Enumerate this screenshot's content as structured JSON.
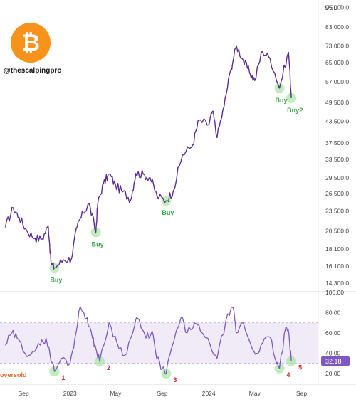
{
  "brand": {
    "logo_glyph": "₿",
    "handle": "@thescalpingpro",
    "logo_color": "#F7931A"
  },
  "chart_data": [
    {
      "type": "line",
      "currency": "USDT",
      "scale": "log",
      "ylim": [
        13500,
        100000
      ],
      "y_ticks": [
        95000,
        83000,
        73000,
        65000,
        57000,
        49500,
        43500,
        37500,
        33500,
        29500,
        26500,
        23500,
        20500,
        18100,
        16100,
        14300
      ],
      "x_ticks": [
        "Sep",
        "2023",
        "May",
        "Sep",
        "2024",
        "May",
        "Sep"
      ],
      "series": [
        {
          "color": "#5B2C91",
          "x": [
            "2022-07-15",
            "2022-08-05",
            "2022-08-20",
            "2022-09-10",
            "2022-10-01",
            "2022-10-20",
            "2022-11-05",
            "2022-11-12",
            "2022-11-21",
            "2022-12-15",
            "2023-01-05",
            "2023-01-20",
            "2023-02-05",
            "2023-02-20",
            "2023-03-10",
            "2023-03-15",
            "2023-03-30",
            "2023-04-14",
            "2023-05-01",
            "2023-05-20",
            "2023-06-10",
            "2023-06-23",
            "2023-07-13",
            "2023-07-31",
            "2023-08-18",
            "2023-09-11",
            "2023-09-30",
            "2023-10-24",
            "2023-11-20",
            "2023-12-06",
            "2024-01-01",
            "2024-01-11",
            "2024-01-23",
            "2024-02-10",
            "2024-02-28",
            "2024-03-14",
            "2024-04-01",
            "2024-04-17",
            "2024-05-01",
            "2024-05-21",
            "2024-06-10",
            "2024-07-05",
            "2024-07-29",
            "2024-08-05"
          ],
          "values": [
            21000,
            24000,
            22500,
            20500,
            19500,
            19400,
            21200,
            16500,
            15900,
            16800,
            16950,
            21100,
            23200,
            24700,
            20300,
            24700,
            28300,
            30300,
            28000,
            26800,
            25400,
            30400,
            30200,
            29500,
            26000,
            25200,
            27000,
            34500,
            37000,
            43800,
            42500,
            46600,
            38900,
            48000,
            62000,
            73000,
            66000,
            61000,
            57500,
            70500,
            67000,
            54600,
            69800,
            51000
          ]
        }
      ],
      "annotations": [
        {
          "text": "Buy",
          "x": "2022-11-21",
          "y": 15900
        },
        {
          "text": "Buy",
          "x": "2023-03-10",
          "y": 20300
        },
        {
          "text": "Buy",
          "x": "2023-09-11",
          "y": 25200
        },
        {
          "text": "Buy",
          "x": "2024-07-05",
          "y": 54600
        },
        {
          "text": "Buy?",
          "x": "2024-08-05",
          "y": 51000
        }
      ]
    },
    {
      "type": "line",
      "series": [
        {
          "color": "#7E57C2",
          "x": [
            "2022-07-15",
            "2022-08-01",
            "2022-08-15",
            "2022-09-05",
            "2022-09-25",
            "2022-10-15",
            "2022-10-30",
            "2022-11-09",
            "2022-11-21",
            "2022-12-10",
            "2023-01-01",
            "2023-01-14",
            "2023-01-28",
            "2023-02-15",
            "2023-03-01",
            "2023-03-10",
            "2023-03-20",
            "2023-04-14",
            "2023-05-05",
            "2023-05-25",
            "2023-06-15",
            "2023-06-25",
            "2023-07-20",
            "2023-08-05",
            "2023-08-17",
            "2023-09-01",
            "2023-09-11",
            "2023-09-25",
            "2023-10-20",
            "2023-11-05",
            "2023-11-25",
            "2023-12-10",
            "2024-01-05",
            "2024-01-23",
            "2024-02-15",
            "2024-03-05",
            "2024-03-13",
            "2024-04-01",
            "2024-04-25",
            "2024-05-05",
            "2024-05-21",
            "2024-06-10",
            "2024-06-28",
            "2024-07-05",
            "2024-07-22",
            "2024-07-30",
            "2024-08-05"
          ],
          "values": [
            48,
            60,
            55,
            40,
            42,
            48,
            55,
            40,
            22,
            35,
            30,
            55,
            86,
            75,
            55,
            45,
            32,
            70,
            50,
            38,
            60,
            75,
            55,
            62,
            35,
            25,
            20,
            45,
            75,
            60,
            70,
            62,
            48,
            35,
            72,
            85,
            60,
            70,
            44,
            40,
            50,
            56,
            30,
            25,
            66,
            58,
            32.18
          ]
        }
      ],
      "y_ticks": [
        100,
        80,
        60,
        40,
        20
      ],
      "oversold_label": "oversold",
      "current_value": "32.18",
      "band": [
        30,
        70
      ],
      "markers": [
        {
          "text": "1",
          "x": "2022-11-21",
          "y": 22
        },
        {
          "text": "2",
          "x": "2023-03-20",
          "y": 32
        },
        {
          "text": "3",
          "x": "2023-09-11",
          "y": 20
        },
        {
          "text": "4",
          "x": "2024-07-05",
          "y": 25
        },
        {
          "text": "5",
          "x": "2024-08-05",
          "y": 32.18
        }
      ]
    }
  ]
}
